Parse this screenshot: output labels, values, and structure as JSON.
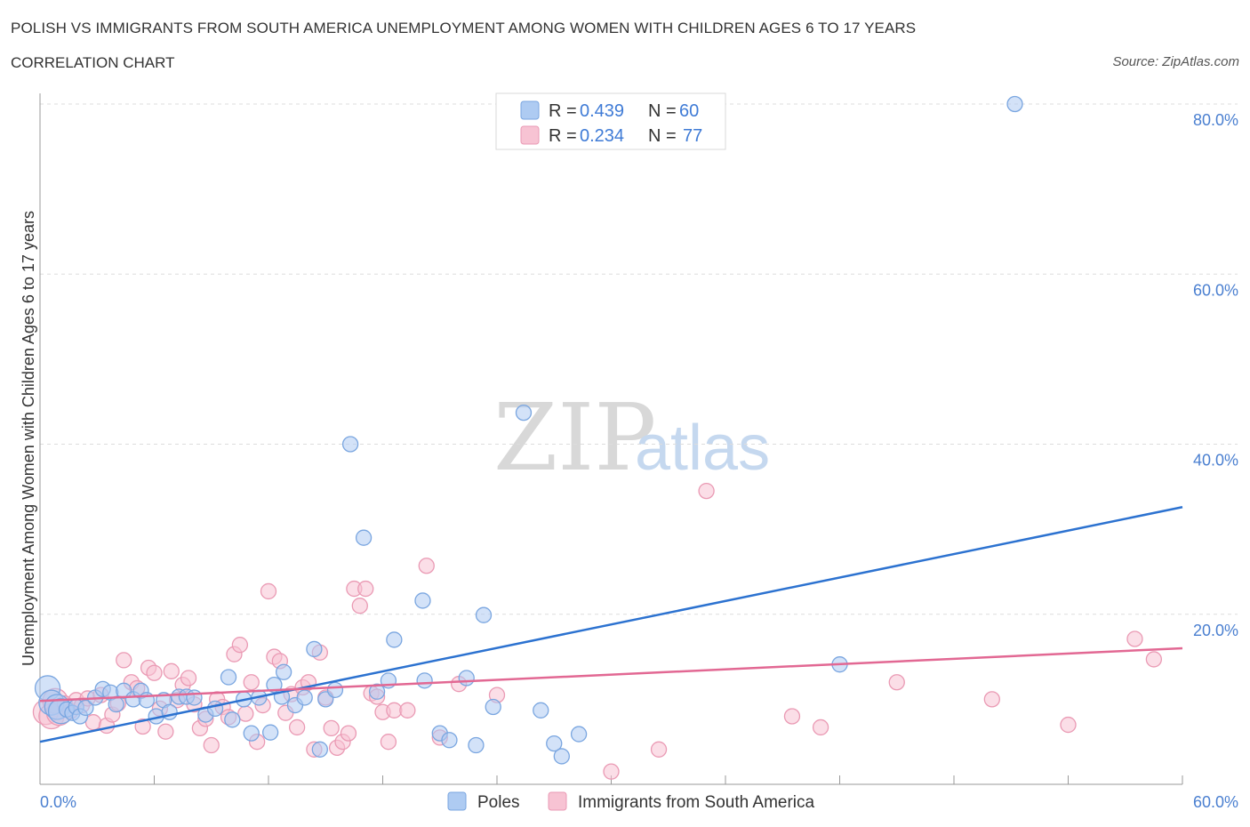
{
  "title": "POLISH VS IMMIGRANTS FROM SOUTH AMERICA UNEMPLOYMENT AMONG WOMEN WITH CHILDREN AGES 6 TO 17 YEARS",
  "subtitle": "CORRELATION CHART",
  "source": "Source: ZipAtlas.com",
  "watermark": {
    "zip": "ZIP",
    "atlas": "atlas"
  },
  "colors": {
    "poles_fill": "#aecbf2",
    "poles_stroke": "#7aa6e0",
    "poles_line": "#2c72d0",
    "immig_fill": "#f7c3d3",
    "immig_stroke": "#ea9ab4",
    "immig_line": "#e26893",
    "tick_blue": "#4a7fd0"
  },
  "legend": {
    "rows": [
      {
        "r_label": "R = ",
        "r_value": "0.439",
        "n_label": "N = ",
        "n_value": "60"
      },
      {
        "r_label": "R = ",
        "r_value": "0.234",
        "n_label": "N = ",
        "n_value": "77"
      }
    ]
  },
  "bottom_legend": [
    "Poles",
    "Immigrants from South America"
  ],
  "chart_data": {
    "type": "scatter",
    "xlabel": "",
    "ylabel": "Unemployment Among Women with Children Ages 6 to 17 years",
    "xlim": [
      0,
      60
    ],
    "ylim": [
      0,
      80
    ],
    "x_tick_labels": [
      "0.0%",
      "60.0%"
    ],
    "y_tick_labels": [
      "20.0%",
      "40.0%",
      "60.0%",
      "80.0%"
    ],
    "y_ticks": [
      20,
      40,
      60,
      80
    ],
    "grid": true,
    "series": [
      {
        "name": "Poles",
        "regression": {
          "x": [
            0,
            60
          ],
          "y": [
            5.0,
            32.6
          ]
        },
        "points": [
          [
            0.4,
            11.3
          ],
          [
            0.6,
            9.6
          ],
          [
            0.9,
            9.1
          ],
          [
            1.1,
            8.6
          ],
          [
            1.4,
            8.8
          ],
          [
            1.7,
            8.4
          ],
          [
            1.9,
            9.1
          ],
          [
            2.1,
            8.0
          ],
          [
            2.4,
            9.0
          ],
          [
            2.9,
            10.2
          ],
          [
            3.3,
            11.2
          ],
          [
            3.7,
            10.8
          ],
          [
            4.0,
            9.4
          ],
          [
            4.4,
            11.0
          ],
          [
            4.9,
            10.0
          ],
          [
            5.3,
            11.0
          ],
          [
            5.6,
            9.9
          ],
          [
            6.1,
            8.0
          ],
          [
            6.5,
            9.9
          ],
          [
            6.8,
            8.5
          ],
          [
            7.3,
            10.3
          ],
          [
            7.7,
            10.3
          ],
          [
            8.1,
            10.2
          ],
          [
            8.7,
            8.2
          ],
          [
            9.2,
            8.9
          ],
          [
            9.9,
            12.6
          ],
          [
            10.1,
            7.6
          ],
          [
            10.7,
            10.0
          ],
          [
            11.1,
            6.0
          ],
          [
            11.5,
            10.2
          ],
          [
            12.1,
            6.1
          ],
          [
            12.3,
            11.7
          ],
          [
            12.7,
            10.3
          ],
          [
            12.8,
            13.2
          ],
          [
            13.4,
            9.3
          ],
          [
            13.9,
            10.2
          ],
          [
            14.4,
            15.9
          ],
          [
            14.7,
            4.1
          ],
          [
            15.0,
            10.0
          ],
          [
            15.5,
            11.1
          ],
          [
            20.2,
            12.2
          ],
          [
            16.3,
            40.0
          ],
          [
            17.0,
            29.0
          ],
          [
            17.7,
            10.9
          ],
          [
            18.3,
            12.2
          ],
          [
            18.6,
            17.0
          ],
          [
            20.1,
            21.6
          ],
          [
            21.0,
            6.0
          ],
          [
            21.5,
            5.2
          ],
          [
            22.4,
            12.5
          ],
          [
            22.9,
            4.6
          ],
          [
            23.3,
            19.9
          ],
          [
            23.8,
            9.1
          ],
          [
            25.4,
            43.7
          ],
          [
            26.3,
            8.7
          ],
          [
            27.0,
            4.8
          ],
          [
            27.4,
            3.3
          ],
          [
            28.3,
            5.9
          ],
          [
            42.0,
            14.1
          ],
          [
            51.2,
            80.0
          ]
        ]
      },
      {
        "name": "Immigrants from South America",
        "regression": {
          "x": [
            0,
            60
          ],
          "y": [
            9.8,
            16.0
          ]
        },
        "points": [
          [
            0.3,
            8.5
          ],
          [
            0.6,
            8.0
          ],
          [
            0.8,
            9.8
          ],
          [
            1.0,
            8.4
          ],
          [
            1.3,
            9.5
          ],
          [
            1.6,
            8.6
          ],
          [
            1.9,
            9.9
          ],
          [
            2.2,
            9.3
          ],
          [
            2.5,
            10.1
          ],
          [
            2.8,
            7.3
          ],
          [
            3.2,
            10.5
          ],
          [
            3.5,
            6.9
          ],
          [
            3.8,
            8.2
          ],
          [
            4.1,
            9.5
          ],
          [
            4.4,
            14.6
          ],
          [
            4.8,
            12.0
          ],
          [
            5.1,
            11.3
          ],
          [
            5.4,
            6.8
          ],
          [
            5.7,
            13.7
          ],
          [
            6.0,
            13.1
          ],
          [
            6.3,
            8.9
          ],
          [
            6.6,
            6.2
          ],
          [
            6.9,
            13.3
          ],
          [
            7.2,
            9.9
          ],
          [
            7.5,
            11.7
          ],
          [
            7.8,
            12.5
          ],
          [
            8.1,
            9.4
          ],
          [
            8.4,
            6.6
          ],
          [
            8.7,
            7.7
          ],
          [
            9.0,
            4.6
          ],
          [
            9.3,
            10.0
          ],
          [
            9.6,
            9.1
          ],
          [
            9.9,
            7.9
          ],
          [
            10.2,
            15.3
          ],
          [
            10.5,
            16.4
          ],
          [
            10.8,
            8.3
          ],
          [
            11.1,
            12.0
          ],
          [
            11.4,
            5.0
          ],
          [
            11.7,
            9.3
          ],
          [
            12.0,
            22.7
          ],
          [
            12.3,
            15.0
          ],
          [
            12.6,
            14.5
          ],
          [
            12.9,
            8.4
          ],
          [
            13.2,
            10.6
          ],
          [
            13.5,
            6.7
          ],
          [
            13.8,
            11.4
          ],
          [
            14.1,
            12.0
          ],
          [
            14.4,
            4.1
          ],
          [
            14.7,
            15.5
          ],
          [
            15.0,
            10.2
          ],
          [
            15.3,
            6.6
          ],
          [
            15.6,
            4.3
          ],
          [
            15.9,
            5.0
          ],
          [
            16.2,
            6.0
          ],
          [
            16.5,
            23.0
          ],
          [
            16.8,
            21.0
          ],
          [
            17.1,
            23.0
          ],
          [
            17.4,
            10.7
          ],
          [
            17.7,
            10.3
          ],
          [
            18.0,
            8.5
          ],
          [
            18.3,
            5.0
          ],
          [
            18.6,
            8.7
          ],
          [
            19.3,
            8.7
          ],
          [
            20.3,
            25.7
          ],
          [
            21.0,
            5.5
          ],
          [
            22.0,
            11.8
          ],
          [
            24.0,
            10.5
          ],
          [
            30.0,
            1.5
          ],
          [
            32.5,
            4.1
          ],
          [
            35.0,
            34.5
          ],
          [
            39.5,
            8.0
          ],
          [
            41.0,
            6.7
          ],
          [
            45.0,
            12.0
          ],
          [
            50.0,
            10.0
          ],
          [
            54.0,
            7.0
          ],
          [
            57.5,
            17.1
          ],
          [
            58.5,
            14.7
          ]
        ]
      }
    ]
  }
}
